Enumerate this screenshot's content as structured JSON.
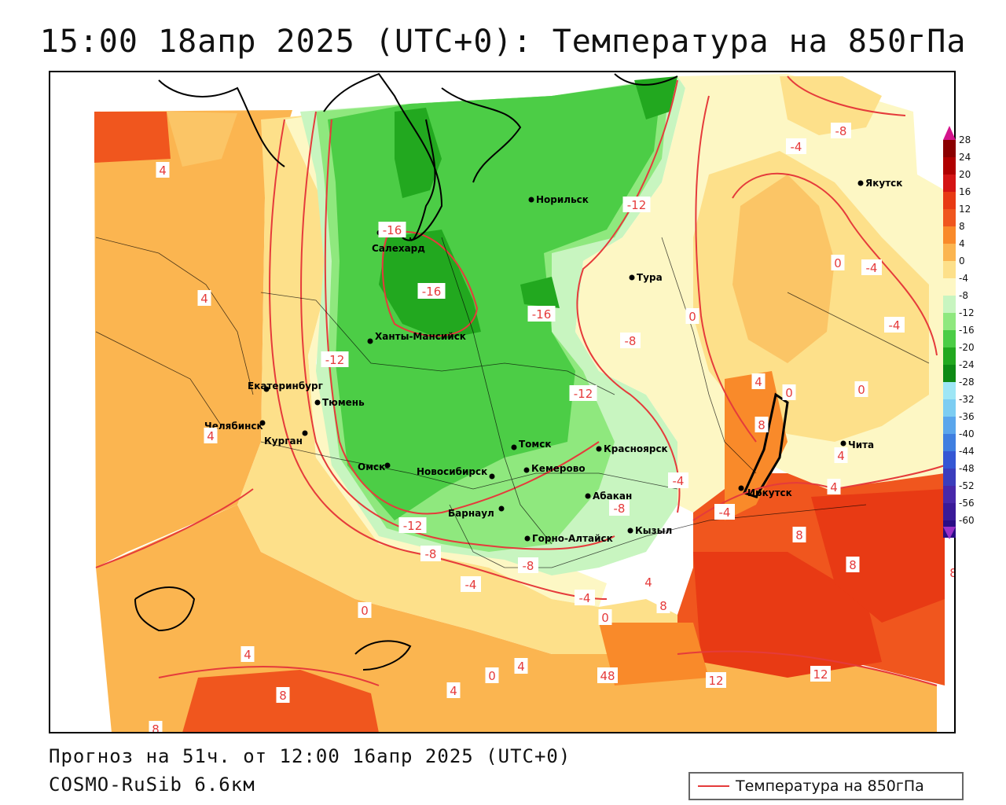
{
  "title": "15:00 18апр 2025 (UTC+0): Температура на 850гПа",
  "footer": {
    "forecast": "Прогноз на 51ч. от 12:00 16апр 2025 (UTC+0)",
    "model": "COSMO-RuSib 6.6км"
  },
  "legend": {
    "label": "Температура на 850гПа",
    "line_color": "#e53b3b"
  },
  "colorbar": {
    "labels": [
      "28",
      "24",
      "20",
      "16",
      "12",
      "8",
      "4",
      "0",
      "-4",
      "-8",
      "-12",
      "-16",
      "-20",
      "-24",
      "-28",
      "-32",
      "-36",
      "-40",
      "-44",
      "-48",
      "-52",
      "-56",
      "-60"
    ],
    "colors": [
      "#8b0000",
      "#b00000",
      "#d41414",
      "#e83a14",
      "#f0561e",
      "#f98a2a",
      "#fbb550",
      "#fde08a",
      "#fdf7c4",
      "#c8f5c0",
      "#8fe87e",
      "#4ccd46",
      "#22a81f",
      "#0e8a14",
      "#9ee6f5",
      "#7ccdf2",
      "#5aa6ec",
      "#3f7fe0",
      "#3457d4",
      "#3b3dbc",
      "#4828aa",
      "#3a1a98",
      "#2a0d86"
    ],
    "top_arrow_color": "#d4148c",
    "bottom_arrow_color": "#9a30c8"
  },
  "cities": [
    {
      "name": "Норильск"
    },
    {
      "name": "Салехард"
    },
    {
      "name": "Тура"
    },
    {
      "name": "Якутск"
    },
    {
      "name": "Ханты-Мансийск"
    },
    {
      "name": "Екатеринбург"
    },
    {
      "name": "Тюмень"
    },
    {
      "name": "Челябинск"
    },
    {
      "name": "Курган"
    },
    {
      "name": "Омск"
    },
    {
      "name": "Новосибирск"
    },
    {
      "name": "Томск"
    },
    {
      "name": "Кемерово"
    },
    {
      "name": "Красноярск"
    },
    {
      "name": "Абакан"
    },
    {
      "name": "Барнаул"
    },
    {
      "name": "Горно-Алтайск"
    },
    {
      "name": "Кызыл"
    },
    {
      "name": "Иркутск"
    },
    {
      "name": "Чита"
    }
  ],
  "contour_labels": [
    "4",
    "4",
    "4",
    "-16",
    "-16",
    "-16",
    "-12",
    "-12",
    "-12",
    "-12",
    "-8",
    "-8",
    "-8",
    "-8",
    "-8",
    "-4",
    "-4",
    "-4",
    "-4",
    "-4",
    "-4",
    "-4",
    "0",
    "0",
    "0",
    "0",
    "0",
    "0",
    "0",
    "4",
    "4",
    "4",
    "4",
    "4",
    "4",
    "4",
    "8",
    "8",
    "8",
    "8",
    "8",
    "8",
    "8",
    "12",
    "12",
    "48"
  ]
}
